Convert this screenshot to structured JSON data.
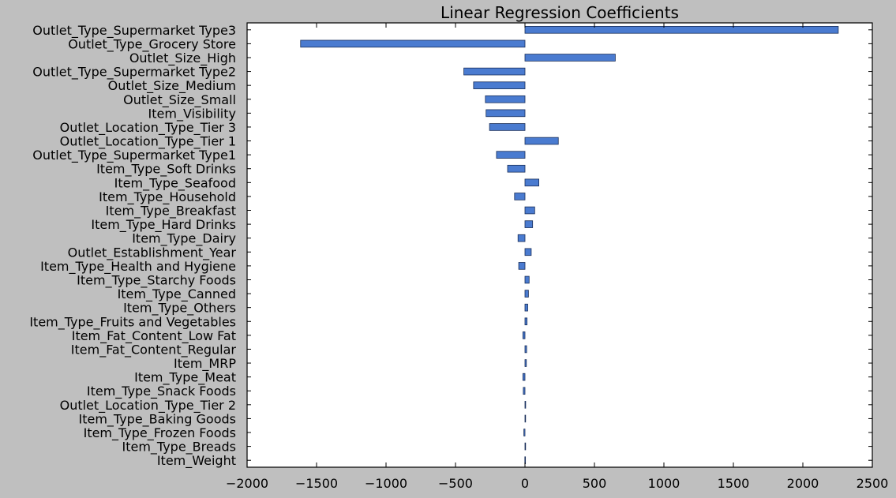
{
  "chart_data": {
    "type": "bar",
    "orientation": "horizontal",
    "title": "Linear Regression Coefficients",
    "xlabel": "",
    "ylabel": "",
    "xlim": [
      -2000,
      2500
    ],
    "xticks": [
      -2000,
      -1500,
      -1000,
      -500,
      0,
      500,
      1000,
      1500,
      2000,
      2500
    ],
    "xtick_labels": [
      "−2000",
      "−1500",
      "−1000",
      "−500",
      "0",
      "500",
      "1000",
      "1500",
      "2000",
      "2500"
    ],
    "grid": false,
    "bar_color": "#4a7bd0",
    "background_color": "#bfbfbf",
    "categories": [
      "Outlet_Type_Supermarket Type3",
      "Outlet_Type_Grocery Store",
      "Outlet_Size_High",
      "Outlet_Type_Supermarket Type2",
      "Outlet_Size_Medium",
      "Outlet_Size_Small",
      "Item_Visibility",
      "Outlet_Location_Type_Tier 3",
      "Outlet_Location_Type_Tier 1",
      "Outlet_Type_Supermarket Type1",
      "Item_Type_Soft Drinks",
      "Item_Type_Seafood",
      "Item_Type_Household",
      "Item_Type_Breakfast",
      "Item_Type_Hard Drinks",
      "Item_Type_Dairy",
      "Outlet_Establishment_Year",
      "Item_Type_Health and Hygiene",
      "Item_Type_Starchy Foods",
      "Item_Type_Canned",
      "Item_Type_Others",
      "Item_Type_Fruits and Vegetables",
      "Item_Fat_Content_Low Fat",
      "Item_Fat_Content_Regular",
      "Item_MRP",
      "Item_Type_Meat",
      "Item_Type_Snack Foods",
      "Outlet_Location_Type_Tier 2",
      "Item_Type_Baking Goods",
      "Item_Type_Frozen Foods",
      "Item_Type_Breads",
      "Item_Weight"
    ],
    "values": [
      2255,
      -1615,
      650,
      -440,
      -370,
      -285,
      -280,
      -255,
      240,
      -205,
      -125,
      100,
      -75,
      70,
      55,
      -50,
      45,
      -45,
      30,
      25,
      20,
      15,
      -15,
      12,
      10,
      -15,
      -12,
      5,
      4,
      -8,
      3,
      -1
    ]
  }
}
